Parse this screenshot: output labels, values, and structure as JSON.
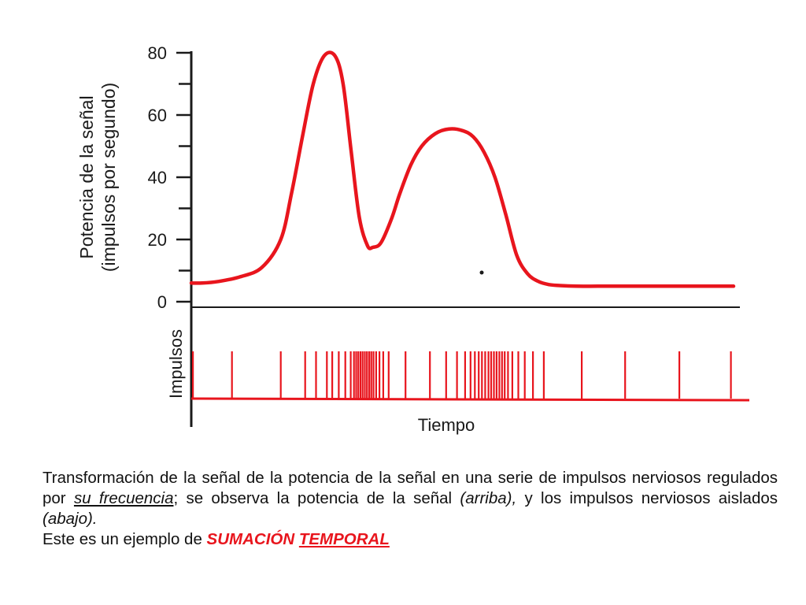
{
  "chart_data": {
    "type": "line",
    "ylabel_line1": "Potencia de la señal",
    "ylabel_line2": "(impulsos por segundo)",
    "impulses_label": "Impulsos",
    "xlabel": "Tiempo",
    "ylim": [
      0,
      80
    ],
    "y_ticks": [
      "0",
      "20",
      "40",
      "60",
      "80"
    ],
    "xlim": [
      0,
      100
    ],
    "grid": false,
    "series": [
      {
        "color": "#e8151d",
        "x": [
          0,
          2,
          5,
          9,
          13,
          16.5,
          18.5,
          20.5,
          22.5,
          24.5,
          26.5,
          28,
          29.5,
          31,
          32.5,
          33.5,
          35,
          37,
          38.5,
          40.5,
          42.5,
          45,
          47.5,
          50,
          52,
          54,
          56,
          58,
          60,
          62,
          64,
          66,
          68,
          71,
          75,
          80,
          88,
          100
        ],
        "y": [
          6,
          6,
          6.5,
          8,
          11,
          20,
          35,
          53,
          70,
          79,
          79,
          70,
          48,
          27,
          18,
          17.5,
          19,
          27,
          35,
          44,
          50,
          54,
          55.5,
          55,
          53,
          48,
          40,
          28,
          15,
          9,
          6.5,
          5.5,
          5.2,
          5,
          5,
          5,
          5,
          5
        ]
      }
    ],
    "impulse_times": [
      0.3,
      7.5,
      16.5,
      21,
      23,
      25,
      26,
      27.2,
      28.4,
      29.4,
      30,
      30.4,
      30.8,
      31.2,
      31.6,
      32,
      32.4,
      32.8,
      33.2,
      33.6,
      34.1,
      34.7,
      35.4,
      36.4,
      39.5,
      44,
      47,
      49,
      50.5,
      51.5,
      52.3,
      53,
      53.6,
      54.2,
      54.8,
      55.3,
      55.8,
      56.3,
      56.8,
      57.3,
      57.8,
      58.4,
      59.2,
      60.3,
      61.5,
      63,
      65,
      72,
      80,
      90,
      99.5
    ]
  },
  "caption": {
    "p1_part1": "Transformación de la señal de la potencia de la señal en una serie de impulsos nerviosos regulados por ",
    "p1_freq": "su frecuencia",
    "p1_part2": "; se observa la potencia de la señal ",
    "p1_arriba": "(arriba),",
    "p1_part3": " y los impulsos nerviosos aislados ",
    "p1_abajo": "(abajo).",
    "p2_intro": "Este es un ejemplo de ",
    "p2_sumacion": "SUMACIÓN",
    "p2_temporal": "TEMPORAL"
  }
}
